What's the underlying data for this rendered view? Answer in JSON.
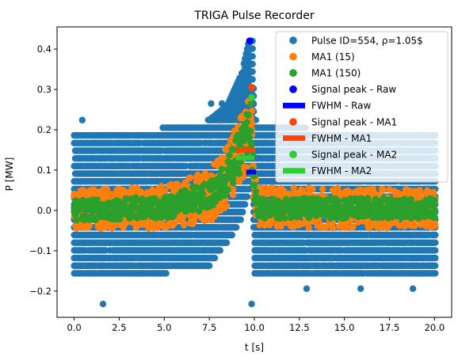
{
  "chart_data": {
    "type": "scatter",
    "title": "TRIGA Pulse Recorder",
    "xlabel": "t [s]",
    "ylabel": "P [MW]",
    "xlim": [
      -0.95,
      20.95
    ],
    "ylim": [
      -0.265,
      0.455
    ],
    "xticks": [
      0.0,
      2.5,
      5.0,
      7.5,
      10.0,
      12.5,
      15.0,
      17.5,
      20.0
    ],
    "xtick_labels": [
      "0.0",
      "2.5",
      "5.0",
      "7.5",
      "10.0",
      "12.5",
      "15.0",
      "17.5",
      "20.0"
    ],
    "yticks": [
      -0.2,
      -0.1,
      0.0,
      0.1,
      0.2,
      0.3,
      0.4
    ],
    "ytick_labels": [
      "−0.2",
      "−0.1",
      "0.0",
      "0.1",
      "0.2",
      "0.3",
      "0.4"
    ],
    "grid": false,
    "legend_position": "top-right",
    "colors": {
      "raw": "#1f77b4",
      "ma1_15": "#ff7f0e",
      "ma1_150": "#2ca02c",
      "peak_raw": "#0000ff",
      "fwhm_raw": "#0000ff",
      "peak_ma1": "#ff4500",
      "fwhm_ma1": "#ff4500",
      "peak_ma2": "#32cd32",
      "fwhm_ma2": "#32cd32"
    },
    "legend": [
      {
        "label": "Pulse ID=554, ρ=1.05$",
        "marker": "dot",
        "color_key": "raw"
      },
      {
        "label": "MA1 (15)",
        "marker": "dot",
        "color_key": "ma1_15"
      },
      {
        "label": "MA1 (150)",
        "marker": "dot",
        "color_key": "ma1_150"
      },
      {
        "label": "Signal peak - Raw",
        "marker": "dot",
        "color_key": "peak_raw"
      },
      {
        "label": "FWHM - Raw",
        "marker": "bar",
        "color_key": "fwhm_raw"
      },
      {
        "label": "Signal peak - MA1",
        "marker": "dot",
        "color_key": "peak_ma1"
      },
      {
        "label": "FWHM - MA1",
        "marker": "bar",
        "color_key": "fwhm_ma1"
      },
      {
        "label": "Signal peak - MA2",
        "marker": "dot",
        "color_key": "peak_ma2"
      },
      {
        "label": "FWHM - MA2",
        "marker": "bar",
        "color_key": "fwhm_ma2"
      }
    ],
    "raw_levels": [
      -0.156,
      -0.137,
      -0.118,
      -0.099,
      -0.08,
      -0.061,
      -0.042,
      -0.023,
      -0.004,
      0.015,
      0.034,
      0.053,
      0.072,
      0.091,
      0.11,
      0.129,
      0.148,
      0.167,
      0.186,
      0.205,
      0.224
    ],
    "raw_band_envelope": [
      {
        "t": 0.0,
        "lo": -0.156,
        "hi": 0.186
      },
      {
        "t": 2.5,
        "lo": -0.156,
        "hi": 0.186
      },
      {
        "t": 5.0,
        "lo": -0.156,
        "hi": 0.205
      },
      {
        "t": 7.5,
        "lo": -0.137,
        "hi": 0.224
      },
      {
        "t": 8.5,
        "lo": -0.08,
        "hi": 0.26
      },
      {
        "t": 9.3,
        "lo": -0.02,
        "hi": 0.34
      },
      {
        "t": 9.7,
        "lo": 0.05,
        "hi": 0.42
      },
      {
        "t": 9.9,
        "lo": 0.09,
        "hi": 0.42
      },
      {
        "t": 10.0,
        "lo": -0.156,
        "hi": 0.224
      },
      {
        "t": 12.5,
        "lo": -0.156,
        "hi": 0.205
      },
      {
        "t": 20.0,
        "lo": -0.156,
        "hi": 0.186
      }
    ],
    "raw_outliers": [
      {
        "t": 0.45,
        "p": 0.224
      },
      {
        "t": 1.6,
        "p": -0.232
      },
      {
        "t": 9.85,
        "p": -0.232
      },
      {
        "t": 12.9,
        "p": -0.194
      },
      {
        "t": 15.9,
        "p": -0.194
      },
      {
        "t": 18.8,
        "p": -0.194
      },
      {
        "t": 7.6,
        "p": 0.265
      },
      {
        "t": 8.2,
        "p": 0.265
      }
    ],
    "ma1_15_envelope": [
      {
        "t": 0.0,
        "lo": -0.045,
        "hi": 0.05
      },
      {
        "t": 5.0,
        "lo": -0.045,
        "hi": 0.06
      },
      {
        "t": 7.5,
        "lo": -0.03,
        "hi": 0.1
      },
      {
        "t": 8.5,
        "lo": 0.01,
        "hi": 0.16
      },
      {
        "t": 9.3,
        "lo": 0.07,
        "hi": 0.24
      },
      {
        "t": 9.8,
        "lo": 0.12,
        "hi": 0.305
      },
      {
        "t": 9.95,
        "lo": 0.02,
        "hi": 0.22
      },
      {
        "t": 10.1,
        "lo": -0.045,
        "hi": 0.06
      },
      {
        "t": 20.0,
        "lo": -0.045,
        "hi": 0.05
      }
    ],
    "ma1_150_envelope": [
      {
        "t": 0.0,
        "lo": -0.025,
        "hi": 0.025
      },
      {
        "t": 5.0,
        "lo": -0.02,
        "hi": 0.035
      },
      {
        "t": 7.5,
        "lo": 0.0,
        "hi": 0.07
      },
      {
        "t": 8.5,
        "lo": 0.04,
        "hi": 0.13
      },
      {
        "t": 9.3,
        "lo": 0.1,
        "hi": 0.21
      },
      {
        "t": 9.8,
        "lo": 0.15,
        "hi": 0.27
      },
      {
        "t": 9.95,
        "lo": 0.03,
        "hi": 0.17
      },
      {
        "t": 10.1,
        "lo": -0.02,
        "hi": 0.03
      },
      {
        "t": 20.0,
        "lo": -0.02,
        "hi": 0.03
      }
    ],
    "peak_raw": {
      "t": 9.75,
      "p": 0.42
    },
    "peak_ma1": {
      "t": 9.85,
      "p": 0.305
    },
    "peak_ma2": {
      "t": 9.85,
      "p": 0.28
    },
    "fwhm_raw": {
      "t_start": 9.55,
      "t_end": 10.1,
      "p": 0.095
    },
    "fwhm_ma1": {
      "t_start": 9.0,
      "t_end": 10.05,
      "p": 0.15
    },
    "fwhm_ma2": {
      "t_start": 8.95,
      "t_end": 10.0,
      "p": 0.13
    }
  }
}
